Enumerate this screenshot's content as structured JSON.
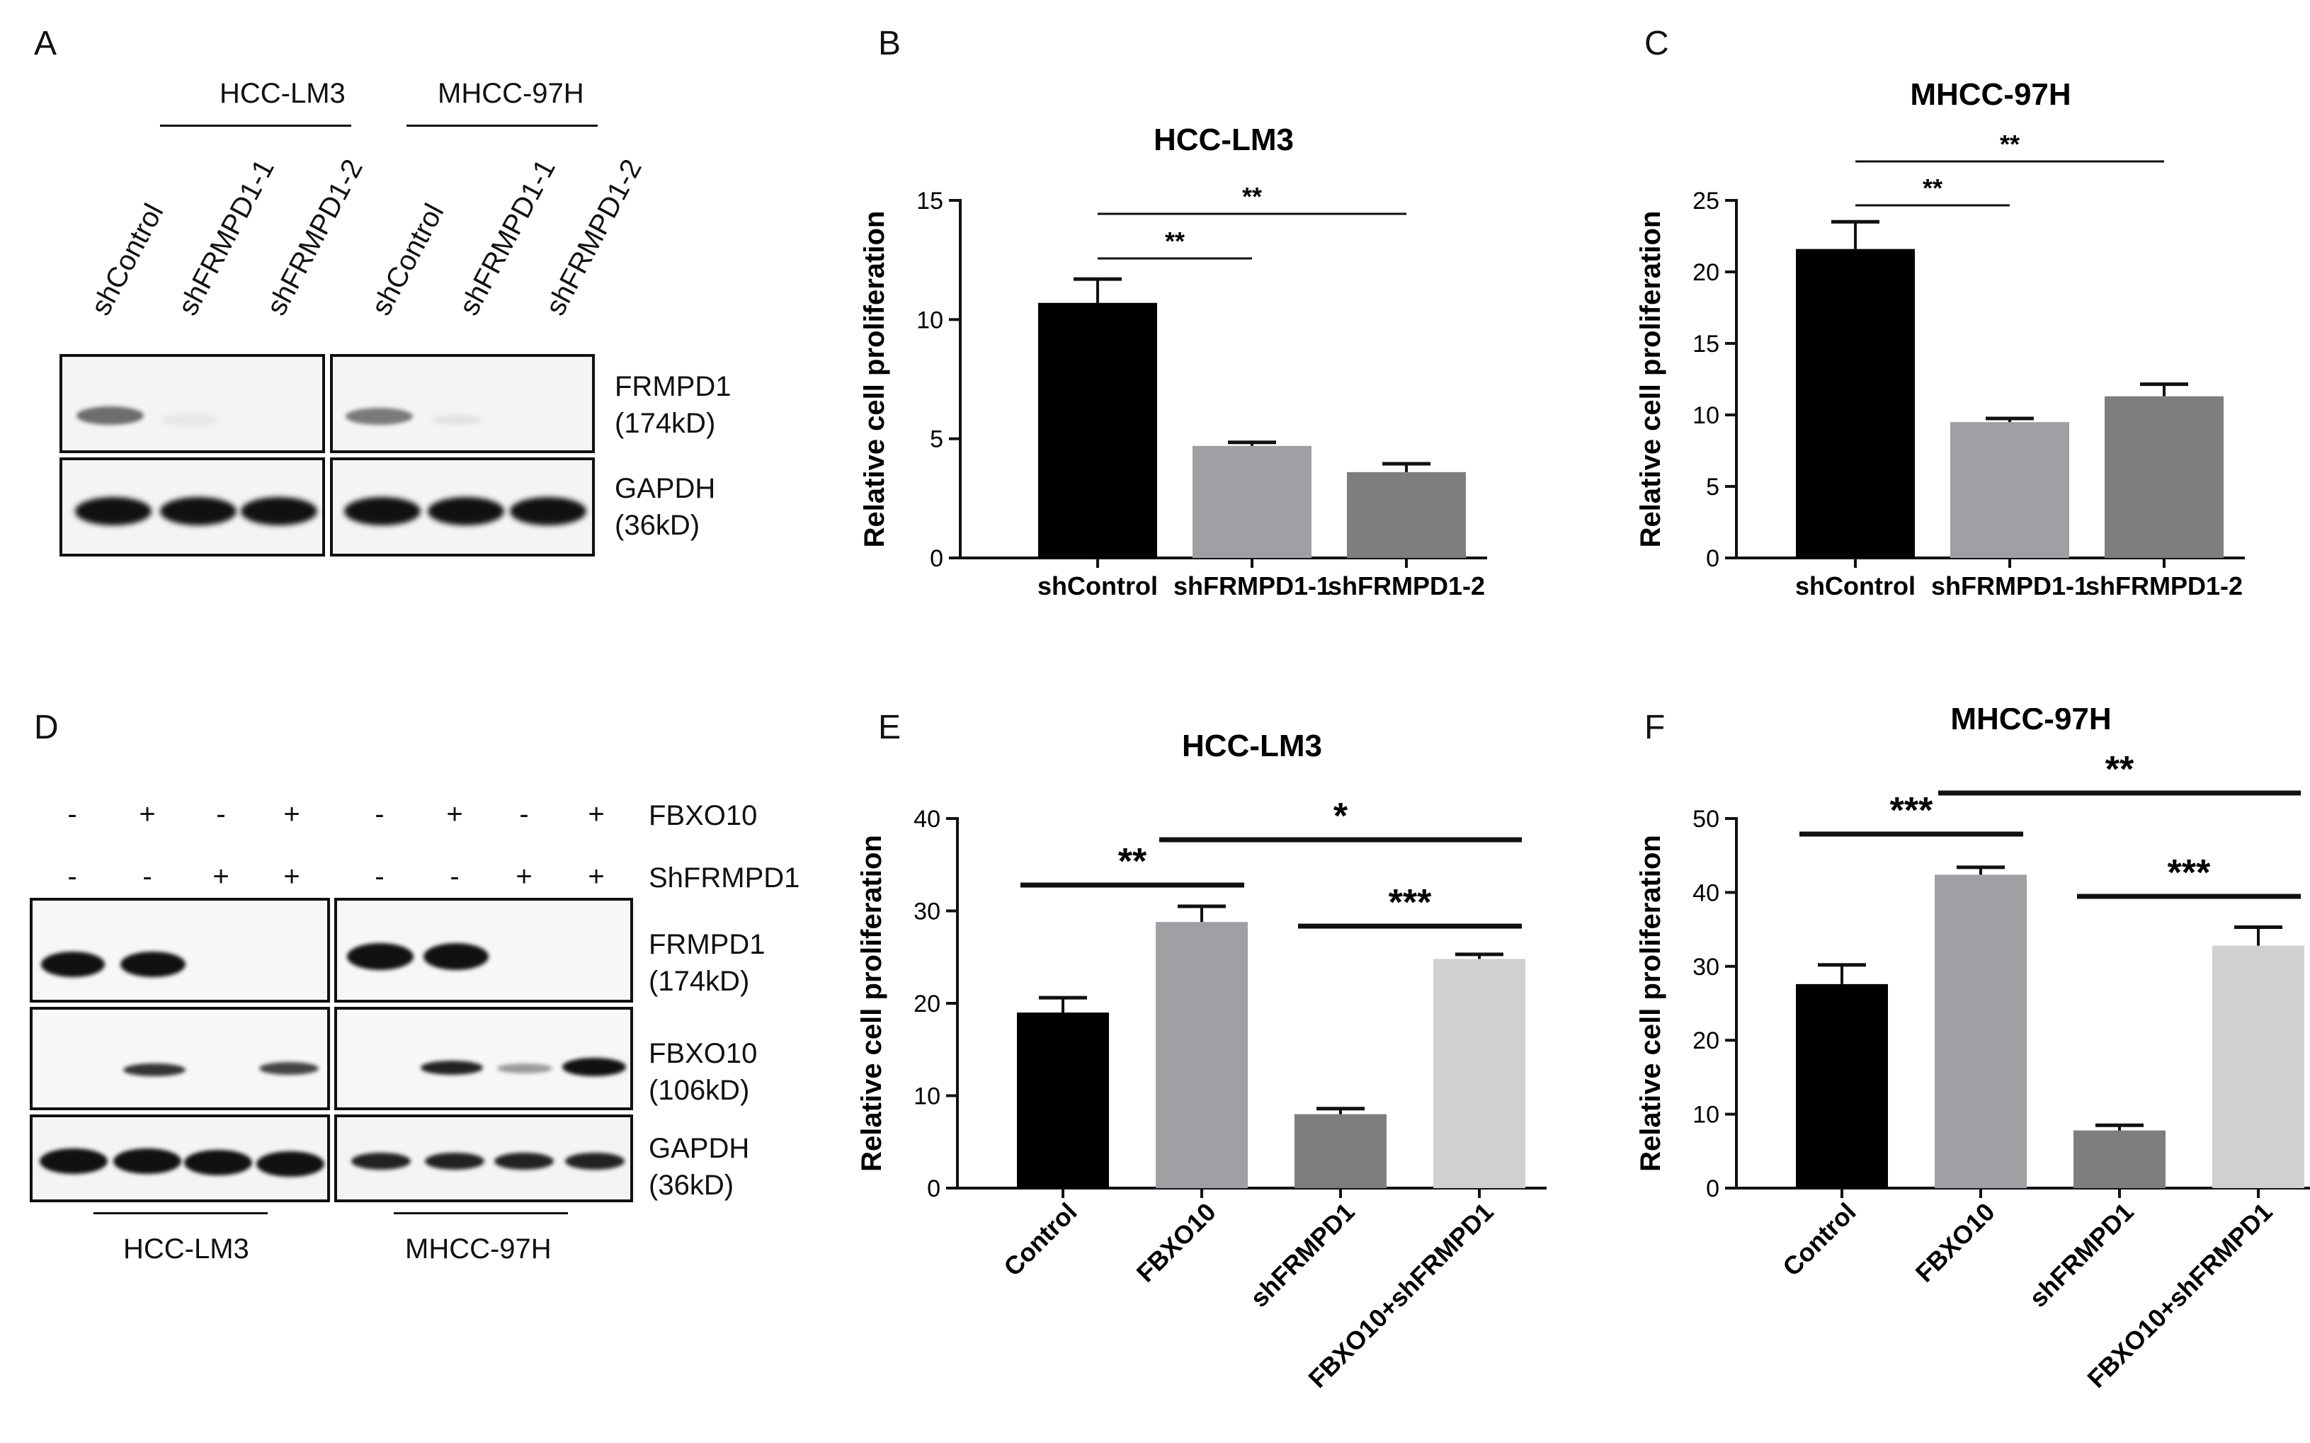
{
  "panels": {
    "A": {
      "letter": "A",
      "groups": [
        "HCC-LM3",
        "MHCC-97H"
      ],
      "lanes": [
        "shControl",
        "shFRMPD1-1",
        "shFRMPD1-2",
        "shControl",
        "shFRMPD1-1",
        "shFRMPD1-2"
      ],
      "rows": [
        {
          "name": "FRMPD1",
          "kd": "(174kD)"
        },
        {
          "name": "GAPDH",
          "kd": "(36kD)"
        }
      ]
    },
    "D": {
      "letter": "D",
      "conditions": [
        {
          "name": "FBXO10",
          "signs": [
            "-",
            "+",
            "-",
            "+",
            "-",
            "+",
            "-",
            "+"
          ]
        },
        {
          "name": "ShFRMPD1",
          "signs": [
            "-",
            "-",
            "+",
            "+",
            "-",
            "-",
            "+",
            "+"
          ]
        }
      ],
      "rows": [
        {
          "name": "FRMPD1",
          "kd": "(174kD)"
        },
        {
          "name": "FBXO10",
          "kd": "(106kD)"
        },
        {
          "name": "GAPDH",
          "kd": "(36kD)"
        }
      ],
      "groups": [
        "HCC-LM3",
        "MHCC-97H"
      ]
    }
  },
  "chart_data": [
    {
      "panel": "B",
      "type": "bar",
      "title": "HCC-LM3",
      "categories": [
        "shControl",
        "shFRMPD1-1",
        "shFRMPD1-2"
      ],
      "values": [
        10.7,
        4.7,
        3.6
      ],
      "errors": [
        1.0,
        0.15,
        0.35
      ],
      "ylabel": "Relative cell proliferation",
      "ylim": [
        0,
        15
      ],
      "yticks": [
        0,
        5,
        10,
        15
      ],
      "colors": [
        "#000000",
        "#a0a0a4",
        "#7e7e7e"
      ],
      "significance": [
        {
          "from": 0,
          "to": 1,
          "label": "**"
        },
        {
          "from": 0,
          "to": 2,
          "label": "**"
        }
      ]
    },
    {
      "panel": "C",
      "type": "bar",
      "title": "MHCC-97H",
      "categories": [
        "shControl",
        "shFRMPD1-1",
        "shFRMPD1-2"
      ],
      "values": [
        21.6,
        9.5,
        11.3
      ],
      "errors": [
        1.9,
        0.25,
        0.85
      ],
      "ylabel": "Relative cell proliferation",
      "ylim": [
        0,
        25
      ],
      "yticks": [
        0,
        5,
        10,
        15,
        20,
        25
      ],
      "colors": [
        "#000000",
        "#a0a0a4",
        "#7e7e7e"
      ],
      "significance": [
        {
          "from": 0,
          "to": 1,
          "label": "**"
        },
        {
          "from": 0,
          "to": 2,
          "label": "**"
        }
      ]
    },
    {
      "panel": "E",
      "type": "bar",
      "title": "HCC-LM3",
      "categories": [
        "Control",
        "FBXO10",
        "shFRMPD1",
        "FBXO10+shFRMPD1"
      ],
      "values": [
        19.0,
        28.8,
        8.0,
        24.8
      ],
      "errors": [
        1.6,
        1.7,
        0.6,
        0.5
      ],
      "ylabel": "Relative cell proliferation",
      "ylim": [
        0,
        40
      ],
      "yticks": [
        0,
        10,
        20,
        30,
        40
      ],
      "colors": [
        "#000000",
        "#a0a0a4",
        "#7e7e7e",
        "#d0d0d0"
      ],
      "significance": [
        {
          "from": 0,
          "to": 1,
          "label": "**"
        },
        {
          "from": 1,
          "to": 3,
          "label": "*"
        },
        {
          "from": 2,
          "to": 3,
          "label": "***"
        }
      ]
    },
    {
      "panel": "F",
      "type": "bar",
      "title": "MHCC-97H",
      "categories": [
        "Control",
        "FBXO10",
        "shFRMPD1",
        "FBXO10+shFRMPD1"
      ],
      "values": [
        27.6,
        42.4,
        7.8,
        32.8
      ],
      "errors": [
        2.6,
        1.0,
        0.7,
        2.5
      ],
      "ylabel": "Relative cell proliferation",
      "ylim": [
        0,
        50
      ],
      "yticks": [
        0,
        10,
        20,
        30,
        40,
        50
      ],
      "colors": [
        "#000000",
        "#a0a0a4",
        "#7e7e7e",
        "#d0d0d0"
      ],
      "significance": [
        {
          "from": 0,
          "to": 1,
          "label": "***"
        },
        {
          "from": 1,
          "to": 3,
          "label": "**"
        },
        {
          "from": 2,
          "to": 3,
          "label": "***"
        }
      ]
    }
  ]
}
